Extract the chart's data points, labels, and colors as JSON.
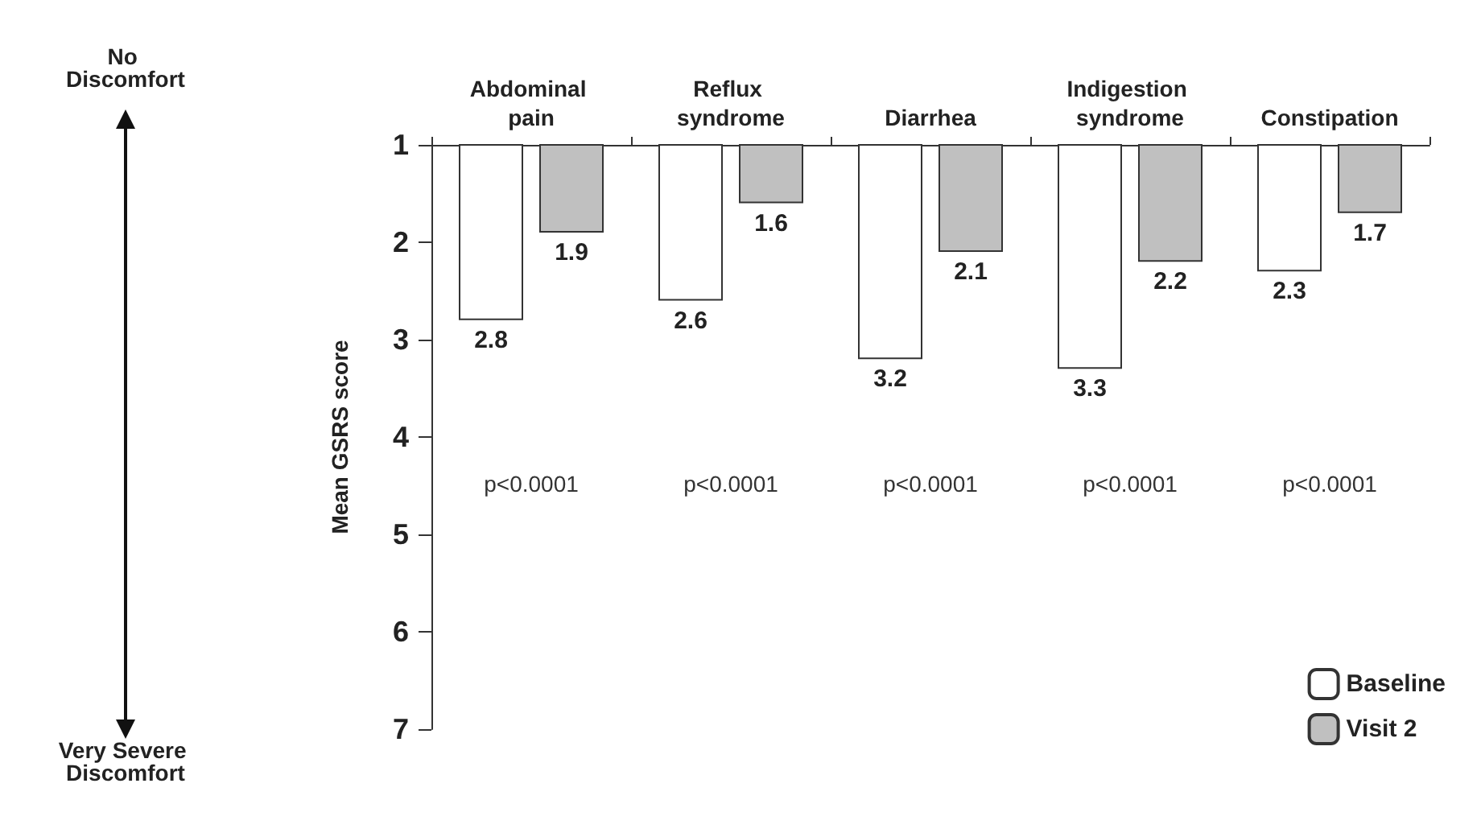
{
  "chart_data": {
    "type": "bar",
    "ylabel": "Mean GSRS score",
    "categories": [
      "Abdominal pain",
      "Reflux syndrome",
      "Diarrhea",
      "Indigestion syndrome",
      "Constipation"
    ],
    "series": [
      {
        "name": "Baseline",
        "color": "#ffffff",
        "values": [
          2.8,
          2.6,
          3.2,
          3.3,
          2.3
        ]
      },
      {
        "name": "Visit 2",
        "color": "#c0c0c0",
        "values": [
          1.9,
          1.6,
          2.1,
          2.2,
          1.7
        ]
      }
    ],
    "ylim": [
      7,
      1
    ],
    "yticks": [
      1,
      2,
      3,
      4,
      5,
      6,
      7
    ],
    "data_labels": true,
    "legend": "bottom right",
    "grid": false,
    "annotations": [
      "No Discomfort",
      "Very Severe Discomfort",
      "p<0.0001",
      "p<0.0001",
      "p<0.0001",
      "p<0.0001",
      "p<0.0001"
    ]
  }
}
